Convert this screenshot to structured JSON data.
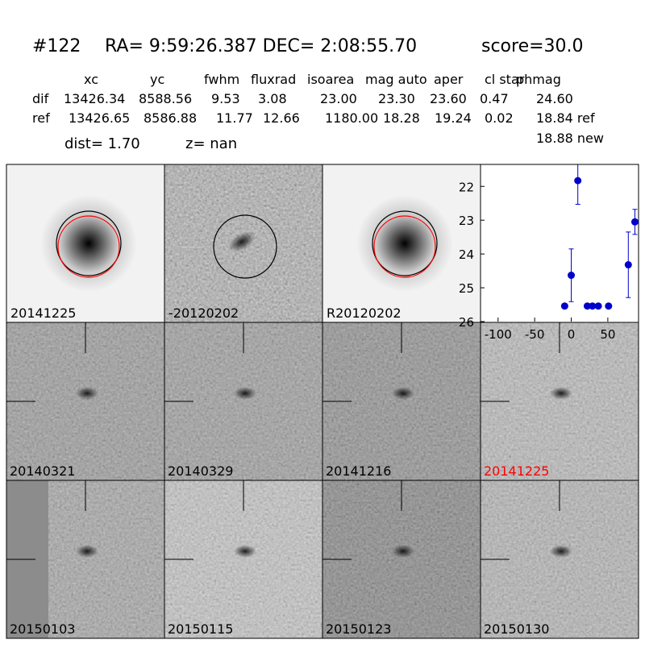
{
  "header": {
    "id": "#122",
    "coords": "RA= 9:59:26.387 DEC= 2:08:55.70",
    "score": "score=30.0"
  },
  "table": {
    "columns": [
      "xc",
      "yc",
      "fwhm",
      "fluxrad",
      "isoarea",
      "mag auto",
      "aper",
      "cl star",
      "phmag"
    ],
    "rows": [
      {
        "label": "dif",
        "cells": [
          "13426.34",
          "8588.56",
          "9.53",
          "3.08",
          "23.00",
          "23.30",
          "23.60",
          "0.47",
          "24.60"
        ]
      },
      {
        "label": "ref",
        "cells": [
          "13426.65",
          "8586.88",
          "11.77",
          "12.66",
          "1180.00",
          "18.28",
          "19.24",
          "0.02",
          "18.84 ref"
        ]
      }
    ],
    "extra": "18.88 new"
  },
  "dist": "dist=  1.70",
  "z": "z=   nan",
  "stamps": [
    "20141225",
    "-20120202",
    "R20120202"
  ],
  "epochs": [
    "20140321",
    "20140329",
    "20141216",
    "20141225",
    "20150103",
    "20150115",
    "20150123",
    "20150130"
  ],
  "current_epoch_color": "#ff0000",
  "light_curve": {
    "type": "scatter",
    "color": "#0000cc",
    "x": [
      -9,
      0,
      9,
      22,
      29,
      37,
      51,
      78,
      87
    ],
    "values": [
      25.54,
      24.63,
      21.83,
      25.54,
      25.54,
      25.54,
      25.54,
      24.32,
      23.05
    ],
    "errors": [
      0.05,
      0.78,
      0.7,
      0.05,
      0.05,
      0.05,
      0.05,
      0.97,
      0.37
    ],
    "xlim": [
      -124,
      92
    ],
    "xticks": [
      -100,
      -50,
      0,
      50
    ],
    "ylim": [
      26,
      21.35
    ],
    "yticks": [
      22,
      23,
      24,
      25,
      26
    ]
  }
}
